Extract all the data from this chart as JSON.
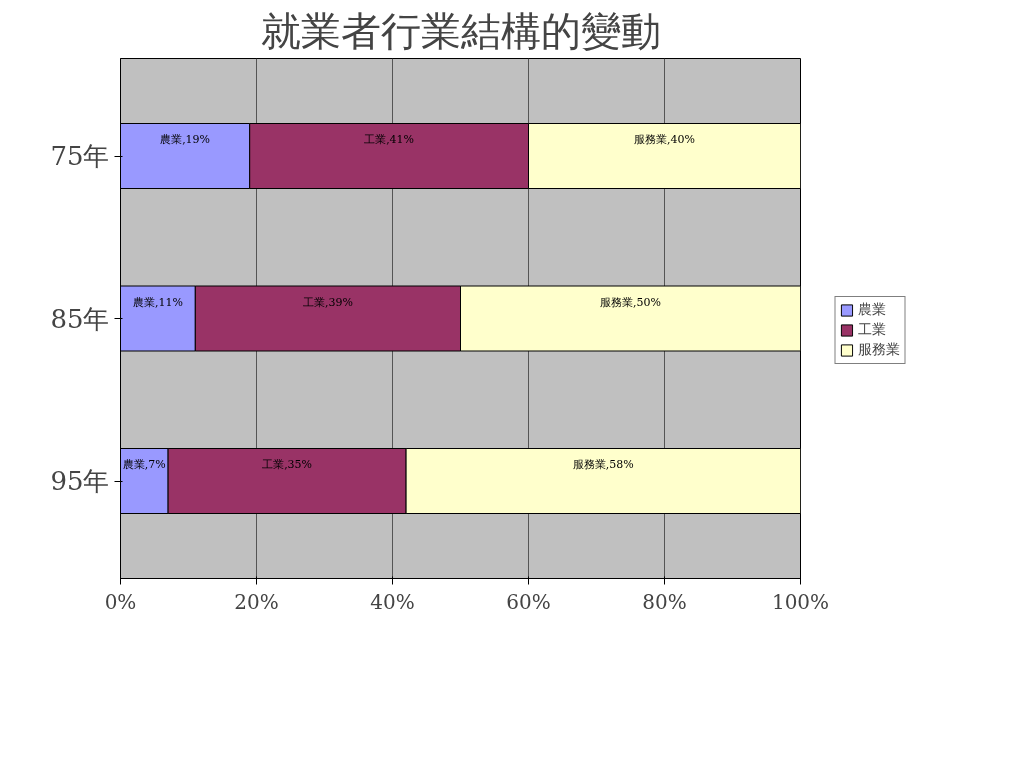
{
  "chart_data": {
    "type": "bar",
    "title": "就業者行業結構的變動",
    "orientation": "horizontal",
    "stacked": true,
    "categories": [
      "75年",
      "85年",
      "95年"
    ],
    "series": [
      {
        "name": "農業",
        "color": "#9999ff",
        "values": [
          19,
          11,
          7
        ],
        "value_labels": [
          "農業,19%",
          "農業,11%",
          "農業,7%"
        ]
      },
      {
        "name": "工業",
        "color": "#993366",
        "values": [
          41,
          39,
          35
        ],
        "value_labels": [
          "工業,41%",
          "工業,39%",
          "工業,35%"
        ]
      },
      {
        "name": "服務業",
        "color": "#ffffcc",
        "values": [
          40,
          50,
          58
        ],
        "value_labels": [
          "服務業,40%",
          "服務業,50%",
          "服務業,58%"
        ]
      }
    ],
    "xlim": [
      0,
      100
    ],
    "xticks": [
      {
        "value": 0,
        "label": "0%"
      },
      {
        "value": 20,
        "label": "20%"
      },
      {
        "value": 40,
        "label": "40%"
      },
      {
        "value": 60,
        "label": "60%"
      },
      {
        "value": 80,
        "label": "80%"
      },
      {
        "value": 100,
        "label": "100%"
      }
    ],
    "grid": "x",
    "legend": "right"
  }
}
